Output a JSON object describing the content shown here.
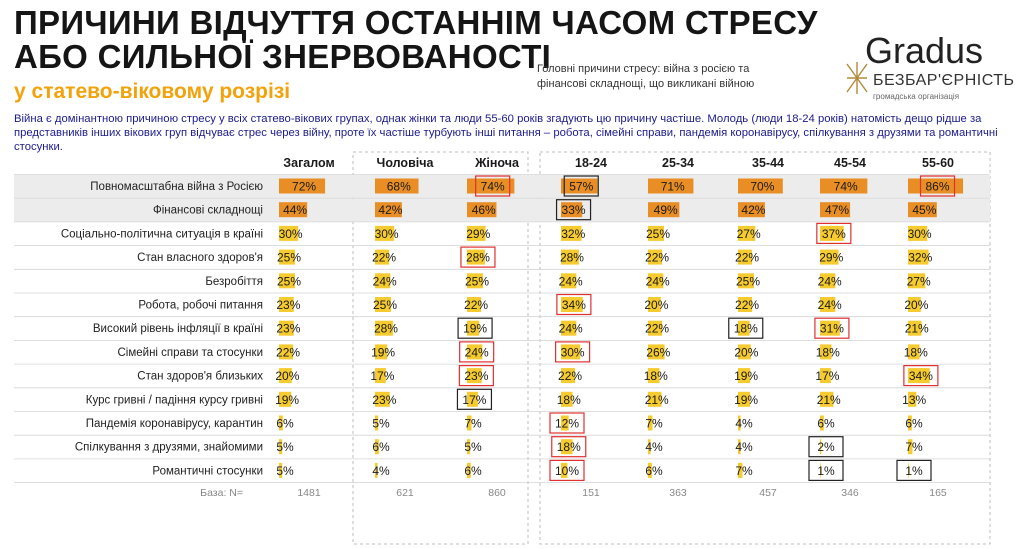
{
  "title_line1": "ПРИЧИНИ ВІДЧУТТЯ ОСТАННІМ ЧАСОМ СТРЕСУ",
  "title_line2": "АБО СИЛЬНОЇ ЗНЕРВОВАНОСТІ",
  "subtitle": "у статево-віковому розрізі",
  "note": "Головні причини стресу: війна з росією та фінансові складнощі, що викликані війною",
  "logo": {
    "brand": "Gradus",
    "partner": "БЕЗБАР'ЄРНІСТЬ",
    "partner_sub": "громадська організація"
  },
  "description": "Війна є домінантною причиною стресу у всіх статево-вікових групах, однак жінки та люди 55-60 років згадують цю причину частіше. Молодь (люди 18-24 років) натомість дещо рідше за представників інших вікових груп відчуває стрес через війну, проте їх частіше турбують інші питання – робота, сімейні справи, пандемія коронавірусу, спілкування з друзями та романтичні стосунки.",
  "colors": {
    "accent": "#F2A20A",
    "bar": "#F5C518",
    "bar_dark": "#E8891A",
    "highlight_red": "#E03030",
    "highlight_black": "#222222"
  },
  "chart_data": {
    "type": "table",
    "columns": [
      "Загалом",
      "Чоловіча",
      "Жіноча",
      "18-24",
      "25-34",
      "35-44",
      "45-54",
      "55-60"
    ],
    "rows": [
      "Повномасштабна війна з Росією",
      "Фінансові складнощі",
      "Соціально-політична ситуація в країні",
      "Стан власного здоров'я",
      "Безробіття",
      "Робота, робочі питання",
      "Високий рівень інфляції в країні",
      "Сімейні справи та стосунки",
      "Стан здоров'я близьких",
      "Курс гривні / падіння курсу гривні",
      "Пандемія коронавірусу, карантин",
      "Спілкування з друзями, знайомими",
      "Романтичні стосунки"
    ],
    "values": [
      [
        72,
        68,
        74,
        57,
        71,
        70,
        74,
        86
      ],
      [
        44,
        42,
        46,
        33,
        49,
        42,
        47,
        45
      ],
      [
        30,
        30,
        29,
        32,
        25,
        27,
        37,
        30
      ],
      [
        25,
        22,
        28,
        28,
        22,
        22,
        29,
        32
      ],
      [
        25,
        24,
        25,
        24,
        24,
        25,
        24,
        27
      ],
      [
        23,
        25,
        22,
        34,
        20,
        22,
        24,
        20
      ],
      [
        23,
        28,
        19,
        24,
        22,
        18,
        31,
        21
      ],
      [
        22,
        19,
        24,
        30,
        26,
        20,
        18,
        18
      ],
      [
        20,
        17,
        23,
        22,
        18,
        19,
        17,
        34
      ],
      [
        19,
        23,
        17,
        18,
        21,
        19,
        21,
        13
      ],
      [
        6,
        5,
        7,
        12,
        7,
        4,
        6,
        6
      ],
      [
        5,
        6,
        5,
        18,
        4,
        4,
        2,
        7
      ],
      [
        5,
        4,
        6,
        10,
        6,
        7,
        1,
        1
      ]
    ],
    "highlights": [
      {
        "row": 0,
        "col": 2,
        "style": "red"
      },
      {
        "row": 0,
        "col": 3,
        "style": "black"
      },
      {
        "row": 0,
        "col": 7,
        "style": "red"
      },
      {
        "row": 1,
        "col": 3,
        "style": "black"
      },
      {
        "row": 2,
        "col": 6,
        "style": "red"
      },
      {
        "row": 3,
        "col": 2,
        "style": "red"
      },
      {
        "row": 5,
        "col": 3,
        "style": "red"
      },
      {
        "row": 6,
        "col": 2,
        "style": "black"
      },
      {
        "row": 6,
        "col": 5,
        "style": "black"
      },
      {
        "row": 6,
        "col": 6,
        "style": "red"
      },
      {
        "row": 7,
        "col": 2,
        "style": "red"
      },
      {
        "row": 7,
        "col": 3,
        "style": "red"
      },
      {
        "row": 8,
        "col": 2,
        "style": "red"
      },
      {
        "row": 8,
        "col": 7,
        "style": "red"
      },
      {
        "row": 9,
        "col": 2,
        "style": "black"
      },
      {
        "row": 10,
        "col": 3,
        "style": "red"
      },
      {
        "row": 11,
        "col": 3,
        "style": "red"
      },
      {
        "row": 11,
        "col": 6,
        "style": "black"
      },
      {
        "row": 12,
        "col": 3,
        "style": "red"
      },
      {
        "row": 12,
        "col": 6,
        "style": "black"
      },
      {
        "row": 12,
        "col": 7,
        "style": "black"
      }
    ],
    "base_label": "База: N=",
    "base": [
      1481,
      621,
      860,
      151,
      363,
      457,
      346,
      165
    ]
  }
}
